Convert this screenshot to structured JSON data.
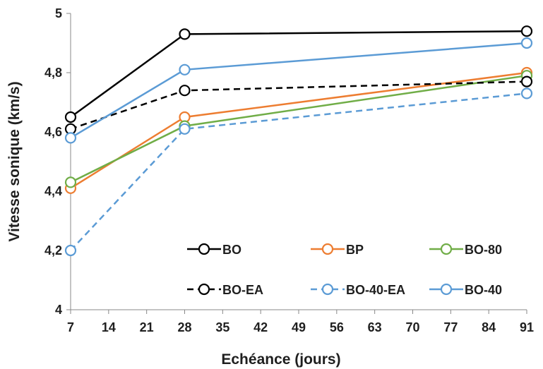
{
  "chart_data": {
    "type": "line",
    "title": "",
    "xlabel": "Echéance (jours)",
    "ylabel": "Vitesse sonique (km/s)",
    "xlim": [
      7,
      91
    ],
    "ylim": [
      4,
      5
    ],
    "x_ticks": [
      7,
      14,
      21,
      28,
      35,
      42,
      49,
      56,
      63,
      70,
      77,
      84,
      91
    ],
    "x_tick_labels": [
      "7",
      "14",
      "21",
      "28",
      "35",
      "42",
      "49",
      "56",
      "63",
      "70",
      "77",
      "84",
      "91"
    ],
    "y_ticks": [
      4,
      4.2,
      4.4,
      4.6,
      4.8,
      5
    ],
    "y_tick_labels": [
      "4",
      "4,2",
      "4,4",
      "4,6",
      "4,8",
      "5"
    ],
    "grid": false,
    "legend_position": "inside-bottom-right",
    "x": [
      7,
      28,
      91
    ],
    "series": [
      {
        "name": "BO",
        "values": [
          4.65,
          4.93,
          4.94
        ],
        "color": "#000000",
        "dashed": false
      },
      {
        "name": "BP",
        "values": [
          4.41,
          4.65,
          4.8
        ],
        "color": "#ED7D31",
        "dashed": false
      },
      {
        "name": "BO-80",
        "values": [
          4.43,
          4.62,
          4.79
        ],
        "color": "#70AD47",
        "dashed": false
      },
      {
        "name": "BO-EA",
        "values": [
          4.61,
          4.74,
          4.77
        ],
        "color": "#000000",
        "dashed": true
      },
      {
        "name": "BO-40-EA",
        "values": [
          4.2,
          4.61,
          4.73
        ],
        "color": "#5B9BD5",
        "dashed": true
      },
      {
        "name": "BO-40",
        "values": [
          4.58,
          4.81,
          4.9
        ],
        "color": "#5B9BD5",
        "dashed": false
      }
    ]
  }
}
